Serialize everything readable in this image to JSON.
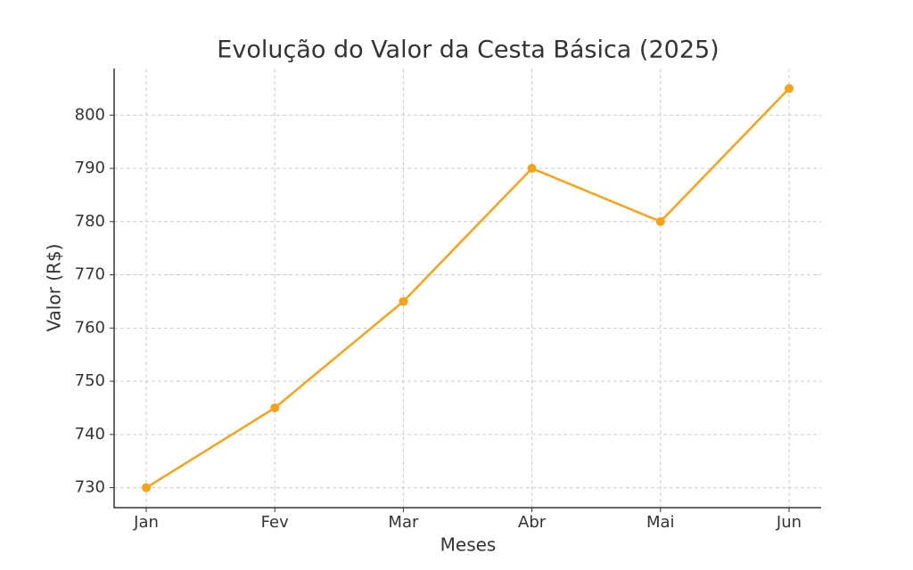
{
  "chart_data": {
    "type": "line",
    "title": "Evolução do Valor da Cesta Básica (2025)",
    "x_label": "Meses",
    "y_label": "Valor (R$)",
    "categories": [
      "Jan",
      "Fev",
      "Mar",
      "Abr",
      "Mai",
      "Jun"
    ],
    "series": [
      {
        "color": "#f5a31a",
        "values": [
          730,
          745,
          765,
          790,
          780,
          805
        ]
      }
    ],
    "ylim": [
      726.25,
      808.75
    ],
    "yticks": [
      730,
      740,
      750,
      760,
      770,
      780,
      790,
      800
    ],
    "grid": true
  }
}
